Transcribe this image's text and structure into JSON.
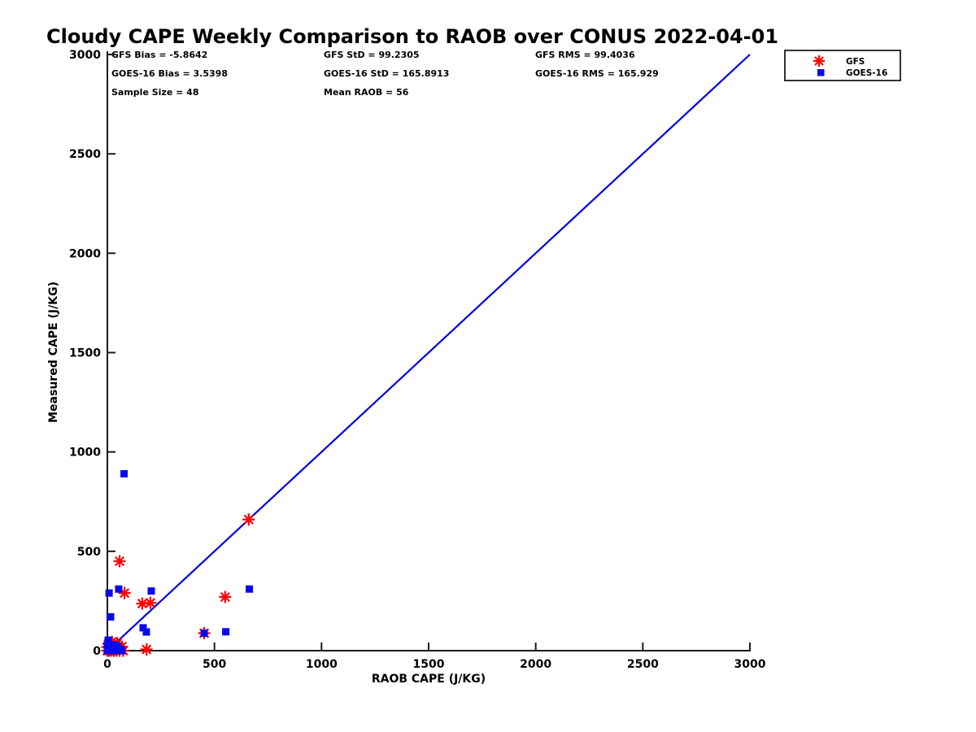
{
  "figure": {
    "background_color": "#ffffff",
    "axis_color": "#1a1a1a",
    "text_color": "#000000"
  },
  "chart_data": {
    "type": "scatter",
    "title": "Cloudy CAPE Weekly Comparison to RAOB over CONUS 2022-04-01",
    "xlabel": "RAOB CAPE (J/KG)",
    "ylabel": "Measured CAPE (J/KG)",
    "xlim": [
      0,
      3000
    ],
    "ylim": [
      0,
      3000
    ],
    "xticks": [
      0,
      500,
      1000,
      1500,
      2000,
      2500,
      3000
    ],
    "yticks": [
      0,
      500,
      1000,
      1500,
      2000,
      2500,
      3000
    ],
    "grid": false,
    "legend_position": "top-right",
    "stats": [
      [
        "GFS Bias = -5.8642",
        "GFS StD = 99.2305",
        "GFS RMS = 99.4036"
      ],
      [
        "GOES-16 Bias = 3.5398",
        "GOES-16 StD = 165.8913",
        "GOES-16 RMS = 165.929"
      ],
      [
        "Sample Size = 48",
        "Mean RAOB = 56"
      ]
    ],
    "ref_line": {
      "name": "one-to-one-line",
      "color": "#0000E6",
      "from": [
        0,
        0
      ],
      "to": [
        3000,
        3000
      ]
    },
    "series": [
      {
        "name": "GFS",
        "marker": "asterisk",
        "color": "#FF0000",
        "points": [
          [
            57,
            450
          ],
          [
            80,
            290
          ],
          [
            163,
            237
          ],
          [
            201,
            241
          ],
          [
            550,
            270
          ],
          [
            660,
            660
          ],
          [
            452,
            88
          ],
          [
            183,
            6
          ],
          [
            0,
            0
          ],
          [
            8,
            0
          ],
          [
            18,
            0
          ],
          [
            30,
            0
          ],
          [
            42,
            0
          ],
          [
            57,
            0
          ],
          [
            74,
            0
          ],
          [
            0,
            18
          ],
          [
            12,
            10
          ],
          [
            26,
            14
          ],
          [
            40,
            22
          ],
          [
            55,
            12
          ],
          [
            5,
            34
          ],
          [
            22,
            44
          ],
          [
            46,
            38
          ],
          [
            68,
            20
          ]
        ]
      },
      {
        "name": "GOES-16",
        "marker": "square",
        "color": "#0808EE",
        "points": [
          [
            78,
            890
          ],
          [
            8,
            290
          ],
          [
            53,
            310
          ],
          [
            205,
            300
          ],
          [
            15,
            170
          ],
          [
            167,
            115
          ],
          [
            182,
            94
          ],
          [
            452,
            88
          ],
          [
            553,
            95
          ],
          [
            663,
            310
          ],
          [
            4,
            53
          ],
          [
            0,
            29
          ],
          [
            15,
            29
          ],
          [
            0,
            4
          ],
          [
            8,
            4
          ],
          [
            30,
            0
          ],
          [
            53,
            0
          ],
          [
            68,
            0
          ],
          [
            0,
            0
          ],
          [
            19,
            0
          ],
          [
            25,
            15
          ],
          [
            40,
            10
          ],
          [
            12,
            20
          ],
          [
            35,
            28
          ],
          [
            48,
            22
          ],
          [
            60,
            6
          ]
        ]
      }
    ]
  }
}
